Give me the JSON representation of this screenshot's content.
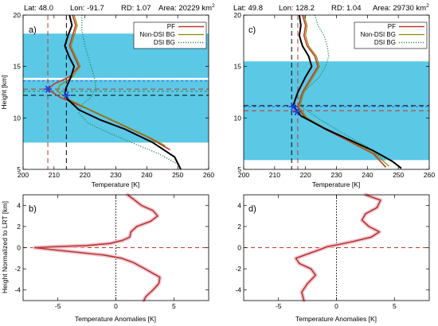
{
  "chart_data": [
    {
      "id": "a",
      "type": "line",
      "panel_label": "a)",
      "header": {
        "lat": "Lat: 48.0",
        "lon": "Lon: -91.7",
        "rd": "RD: 1.07",
        "area": "Area: 20229 km",
        "area_sup": "2"
      },
      "xlabel": "Temperature [K]",
      "ylabel": "Height [km]",
      "xlim": [
        200,
        260
      ],
      "ylim": [
        5,
        20
      ],
      "xticks": [
        200,
        210,
        220,
        230,
        240,
        250,
        260
      ],
      "yticks": [
        5,
        10,
        15,
        20
      ],
      "bands": [
        {
          "y": [
            7.6,
            18.2
          ],
          "color": "#5bc8e6"
        },
        {
          "y": [
            13.7,
            13.9
          ],
          "color": "#ffffff"
        }
      ],
      "hlines": [
        {
          "y": 12.8,
          "color": "#c0392b",
          "dash": "6 4"
        },
        {
          "y": 12.2,
          "color": "#000000",
          "dash": "6 4"
        },
        {
          "y": 13.6,
          "color": "#3b5bdb",
          "dash": "3 3"
        },
        {
          "y": 12.6,
          "color": "#2e8b57",
          "dash": "3 3"
        }
      ],
      "vlines": [
        {
          "x": 208.0,
          "color": "#c0392b",
          "dash": "6 4"
        },
        {
          "x": 214.0,
          "color": "#000000",
          "dash": "6 4"
        }
      ],
      "markers": [
        {
          "x": 208.0,
          "y": 12.8,
          "color": "#1f3fdb"
        },
        {
          "x": 214.0,
          "y": 12.2,
          "color": "#1f3fdb"
        }
      ],
      "legend": {
        "position": "top-right",
        "entries": [
          "PF",
          "Non-DSI BG",
          "DSI BG"
        ]
      },
      "series": [
        {
          "name": "PF",
          "color": "#c0392b",
          "style": "solid",
          "width": 1.6,
          "x": [
            216,
            217,
            216,
            215,
            216.5,
            218,
            215,
            210,
            208,
            212,
            220,
            230,
            240,
            247.5
          ],
          "y": [
            20,
            19,
            18,
            17,
            16,
            15,
            14,
            13.3,
            12.8,
            12.0,
            11.0,
            9.6,
            8.2,
            6.9
          ]
        },
        {
          "name": "Non-DSI BG",
          "color": "#8b8b00",
          "style": "solid",
          "width": 1.2,
          "x": [
            216.5,
            217.5,
            216.5,
            215.5,
            217,
            218.5,
            216,
            212,
            211,
            213.5,
            221,
            231,
            241,
            246
          ],
          "y": [
            20,
            19,
            18,
            17,
            16,
            15,
            14,
            13.2,
            12.7,
            12.0,
            10.9,
            9.5,
            8.1,
            7.3
          ]
        },
        {
          "name": "DSI BG",
          "color": "#2e8b57",
          "style": "dotted",
          "width": 1.3,
          "x": [
            219,
            219,
            220,
            221,
            222,
            223,
            223.5,
            222,
            219,
            218,
            221,
            228,
            236,
            244,
            250
          ],
          "y": [
            20,
            18.5,
            17,
            16,
            15,
            14,
            13,
            12,
            11.3,
            10.5,
            9.5,
            8.5,
            7.5,
            6.5,
            5.5
          ]
        },
        {
          "name": "",
          "color": "#000000",
          "style": "solid",
          "width": 2.0,
          "x": [
            215,
            215.8,
            214.5,
            213.5,
            214.8,
            216.5,
            215.5,
            214,
            213.5,
            214.5,
            218,
            225,
            233,
            242,
            249,
            251
          ],
          "y": [
            20,
            19,
            18,
            17,
            16,
            15,
            14,
            13,
            12.4,
            11.8,
            10.8,
            9.8,
            8.9,
            7.6,
            6.2,
            5.0
          ]
        }
      ]
    },
    {
      "id": "c",
      "type": "line",
      "panel_label": "c)",
      "header": {
        "lat": "Lat: 49.8",
        "lon": "Lon: 128.2",
        "rd": "RD: 1.04",
        "area": "Area: 29730 km",
        "area_sup": "2"
      },
      "xlabel": "Temperature [K]",
      "ylabel": "",
      "xlim": [
        200,
        260
      ],
      "ylim": [
        5,
        20
      ],
      "xticks": [
        200,
        210,
        220,
        230,
        240,
        250,
        260
      ],
      "yticks": [
        5,
        10,
        15,
        20
      ],
      "bands": [
        {
          "y": [
            5.6,
            15.5
          ],
          "color": "#5bc8e6"
        },
        {
          "y": [
            5.5,
            5.9
          ],
          "color": "#ffffff"
        }
      ],
      "hlines": [
        {
          "y": 11.2,
          "color": "#000000",
          "dash": "6 4"
        },
        {
          "y": 10.7,
          "color": "#c0392b",
          "dash": "6 4"
        },
        {
          "y": 11.1,
          "color": "#3b5bdb",
          "dash": "3 3"
        }
      ],
      "vlines": [
        {
          "x": 215.5,
          "color": "#000000",
          "dash": "6 4"
        },
        {
          "x": 217.5,
          "color": "#c0392b",
          "dash": "6 4"
        }
      ],
      "markers": [
        {
          "x": 216.0,
          "y": 11.1,
          "color": "#1f3fdb"
        },
        {
          "x": 217.2,
          "y": 10.6,
          "color": "#1f3fdb"
        }
      ],
      "legend": {
        "position": "top-right",
        "entries": [
          "PF",
          "Non-DSI BG",
          "DSI BG"
        ]
      },
      "series": [
        {
          "name": "PF",
          "color": "#c0392b",
          "style": "solid",
          "width": 1.6,
          "x": [
            219,
            220,
            219.5,
            220.5,
            223,
            224,
            222,
            219,
            217.5,
            220,
            227,
            235,
            242,
            246
          ],
          "y": [
            20,
            19,
            18,
            17,
            16,
            15,
            14,
            12.5,
            11.0,
            10.0,
            8.8,
            7.6,
            6.5,
            5.2
          ]
        },
        {
          "name": "Non-DSI BG",
          "color": "#8b8b00",
          "style": "solid",
          "width": 1.2,
          "x": [
            219.5,
            220.5,
            220,
            221,
            223.5,
            224.5,
            222.5,
            219.5,
            218,
            220.5,
            227.5,
            235.5,
            242.5,
            247
          ],
          "y": [
            20,
            19,
            18,
            17,
            16,
            15,
            14,
            12.5,
            11.0,
            10.0,
            8.8,
            7.6,
            6.5,
            5.3
          ]
        },
        {
          "name": "DSI BG",
          "color": "#2e8b57",
          "style": "dotted",
          "width": 1.3,
          "x": [
            223,
            224,
            226,
            227,
            227.5,
            226.5,
            224.5,
            221,
            218,
            219,
            225,
            232,
            240,
            246
          ],
          "y": [
            20,
            19,
            18,
            17,
            16,
            15,
            14,
            13,
            12,
            11,
            9.8,
            8.5,
            7.2,
            5.8
          ]
        },
        {
          "name": "",
          "color": "#000000",
          "style": "solid",
          "width": 2.0,
          "x": [
            218,
            218.5,
            218,
            219,
            221,
            222,
            220,
            217.5,
            216,
            218.5,
            226,
            234,
            242,
            248,
            251
          ],
          "y": [
            20,
            19,
            18,
            17,
            16,
            15,
            14,
            12.5,
            11.2,
            10.2,
            9.0,
            7.9,
            6.8,
            5.8,
            5.1
          ]
        }
      ]
    },
    {
      "id": "b",
      "type": "line",
      "panel_label": "b)",
      "xlabel": "Temperature Anomalies [K]",
      "ylabel": "Height Normalized to LRT [km]",
      "xlim": [
        -8,
        8
      ],
      "ylim": [
        -5,
        5
      ],
      "xticks": [
        -5,
        0,
        5
      ],
      "yticks": [
        -4,
        -2,
        0,
        2,
        4
      ],
      "hlines": [
        {
          "y": 0,
          "color": "#c0392b",
          "dash": "5 4"
        }
      ],
      "vlines": [
        {
          "x": 0,
          "color": "#000000",
          "dash": "1.5 2"
        }
      ],
      "series": [
        {
          "name": "",
          "color": "#b03a2e",
          "style": "solid",
          "width": 1.6,
          "halo": "#f7c5d5",
          "x": [
            1.0,
            1.5,
            2.2,
            3.2,
            3.6,
            3.0,
            1.8,
            1.3,
            1.2,
            0.6,
            -0.5,
            -2.5,
            -5.5,
            -7.0,
            -4.5,
            -1.0,
            0.5,
            1.5,
            2.5,
            3.8,
            3.7,
            3.2,
            2.6,
            2.4
          ],
          "y": [
            5.0,
            4.6,
            4.0,
            3.5,
            3.0,
            2.5,
            2.0,
            1.5,
            1.0,
            0.7,
            0.4,
            0.2,
            0.08,
            0.0,
            -0.3,
            -0.7,
            -1.0,
            -1.4,
            -2.0,
            -2.8,
            -3.4,
            -4.0,
            -4.6,
            -5.0
          ]
        }
      ]
    },
    {
      "id": "d",
      "type": "line",
      "panel_label": "d)",
      "xlabel": "Temperature Anomalies [K]",
      "ylabel": "",
      "xlim": [
        -8,
        8
      ],
      "ylim": [
        -5,
        5
      ],
      "xticks": [
        -5,
        0,
        5
      ],
      "yticks": [
        -4,
        -2,
        0,
        2,
        4
      ],
      "hlines": [
        {
          "y": 0,
          "color": "#c0392b",
          "dash": "5 4"
        }
      ],
      "vlines": [
        {
          "x": 0,
          "color": "#000000",
          "dash": "1.5 2"
        }
      ],
      "series": [
        {
          "name": "",
          "color": "#b03a2e",
          "style": "solid",
          "width": 1.6,
          "halo": "#f7c5d5",
          "x": [
            2.5,
            3.8,
            3.5,
            2.5,
            2.2,
            2.8,
            3.7,
            3.0,
            1.5,
            0.2,
            -0.8,
            -1.5,
            -2.5,
            -3.5,
            -3.2,
            -2.2,
            -1.8,
            -2.5,
            -3.0,
            -2.8
          ],
          "y": [
            5.0,
            4.5,
            3.8,
            3.2,
            2.6,
            2.0,
            1.5,
            1.0,
            0.6,
            0.3,
            0.1,
            -0.2,
            -0.6,
            -1.0,
            -1.5,
            -2.0,
            -2.6,
            -3.4,
            -4.2,
            -5.0
          ]
        }
      ]
    }
  ]
}
